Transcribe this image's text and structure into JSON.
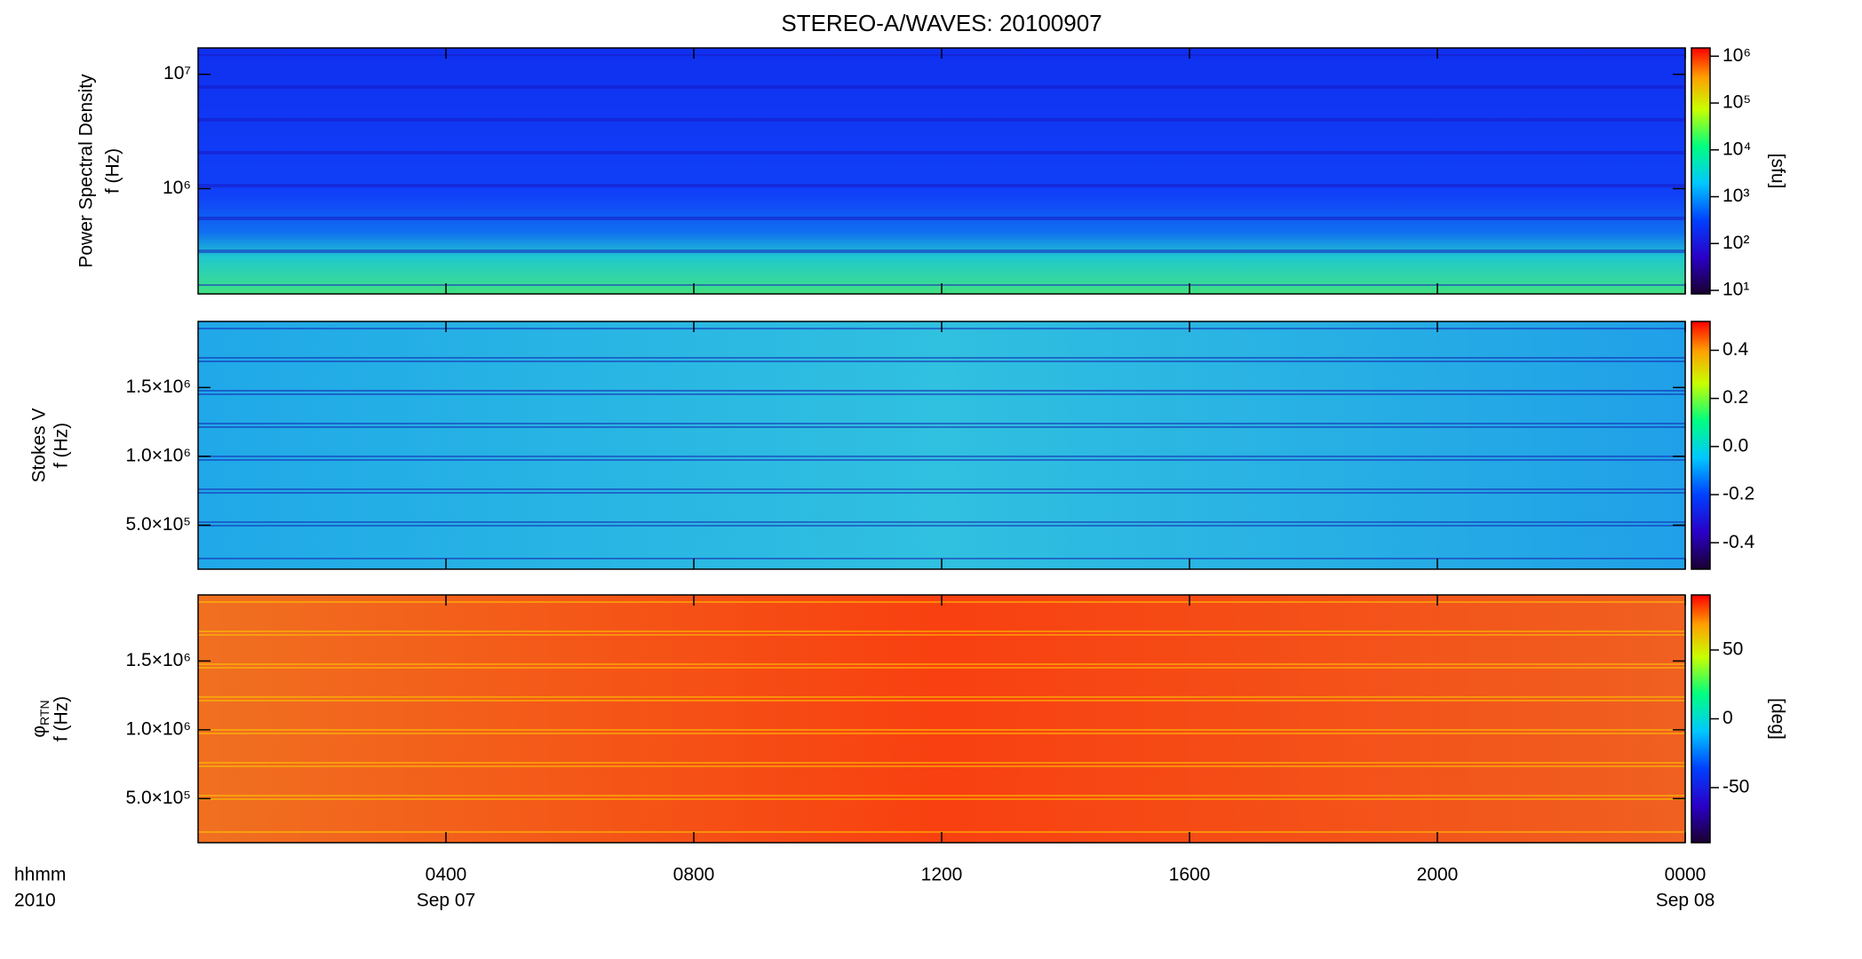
{
  "chart_data": [
    {
      "type": "spectrogram",
      "title": "STEREO-A/WAVES: 20100907",
      "ylabel": [
        "Power Spectral Density",
        "f (Hz)"
      ],
      "ylog": true,
      "ylim": [
        120000,
        17000000
      ],
      "yticks": [
        {
          "value": 1000000,
          "label": "10⁶"
        },
        {
          "value": 10000000,
          "label": "10⁷"
        }
      ],
      "xlim": [
        0,
        24
      ],
      "colorbar": {
        "log": true,
        "lim": [
          8.4,
          1500000
        ],
        "ticks": [
          {
            "value": 10,
            "label": "10¹"
          },
          {
            "value": 100,
            "label": "10²"
          },
          {
            "value": 1000,
            "label": "10³"
          },
          {
            "value": 10000,
            "label": "10⁴"
          },
          {
            "value": 100000,
            "label": "10⁵"
          },
          {
            "value": 1000000,
            "label": "10⁶"
          }
        ],
        "label": "[sfu]"
      }
    },
    {
      "type": "spectrogram",
      "ylabel": [
        "Stokes V",
        "f (Hz)"
      ],
      "ylog": false,
      "ylim": [
        180000,
        1980000
      ],
      "yticks": [
        {
          "value": 500000,
          "label": "5.0×10⁵"
        },
        {
          "value": 1000000,
          "label": "1.0×10⁶"
        },
        {
          "value": 1500000,
          "label": "1.5×10⁶"
        }
      ],
      "xlim": [
        0,
        24
      ],
      "colorbar": {
        "log": false,
        "lim": [
          -0.51,
          0.52
        ],
        "ticks": [
          {
            "value": -0.4,
            "label": "-0.4"
          },
          {
            "value": -0.2,
            "label": "-0.2"
          },
          {
            "value": 0,
            "label": "0.0"
          },
          0.2,
          0.4
        ]
      }
    },
    {
      "type": "spectrogram",
      "ylabel": [
        "φ",
        "f (Hz)"
      ],
      "ylabel_subscript": "RTN",
      "ylog": false,
      "ylim": [
        180000,
        1980000
      ],
      "yticks": [
        {
          "value": 500000,
          "label": "5.0×10⁵"
        },
        {
          "value": 1000000,
          "label": "1.0×10⁶"
        },
        {
          "value": 1500000,
          "label": "1.5×10⁶"
        }
      ],
      "xlim": [
        0,
        24
      ],
      "xlabel": [
        "hhmm",
        "2010"
      ],
      "xticks": [
        {
          "value": 4,
          "label": "0400",
          "date": "Sep 07"
        },
        {
          "value": 8,
          "label": "0800"
        },
        {
          "value": 12,
          "label": "1200"
        },
        {
          "value": 16,
          "label": "1600"
        },
        {
          "value": 20,
          "label": "2000"
        },
        {
          "value": 24,
          "label": "0000",
          "date": "Sep 08"
        }
      ],
      "colorbar": {
        "log": false,
        "lim": [
          -90,
          90
        ],
        "ticks": [
          -50,
          0,
          50
        ],
        "label": "[deg]"
      }
    }
  ]
}
